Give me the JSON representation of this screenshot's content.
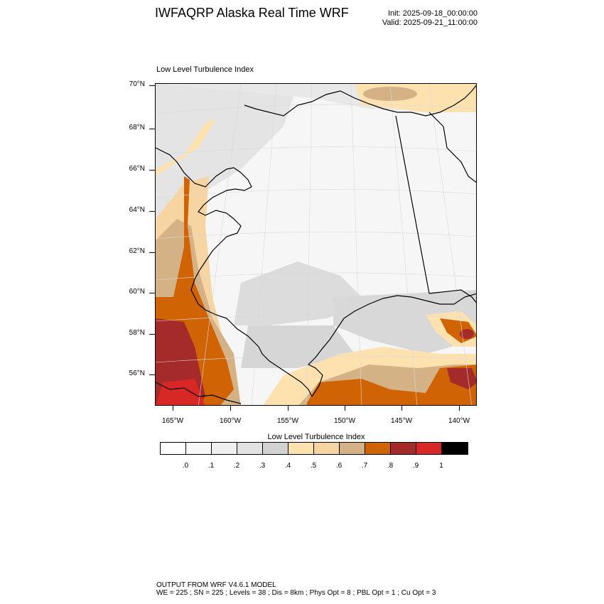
{
  "header": {
    "title": "IWFAQRP Alaska Real Time WRF",
    "init": "Init: 2025-09-18_00:00:00",
    "valid": "Valid: 2025-09-21_11:00:00"
  },
  "map": {
    "subtitle": "Low Level Turbulence Index",
    "lat_labels": [
      "70°N",
      "68°N",
      "66°N",
      "64°N",
      "62°N",
      "60°N",
      "58°N",
      "56°N"
    ],
    "lon_labels": [
      "165°W",
      "160°W",
      "155°W",
      "150°W",
      "145°W",
      "140°W"
    ],
    "coastline_color": "#000000",
    "grid_color": "#d8d8d8"
  },
  "colorbar": {
    "title": "Low Level Turbulence Index",
    "labels": [
      ".0",
      ".1",
      ".2",
      ".3",
      ".4",
      ".5",
      ".6",
      ".7",
      ".8",
      ".9",
      "1"
    ],
    "colors": [
      "#ffffff",
      "#f8f8f8",
      "#efefef",
      "#e2e2e2",
      "#d2d2d2",
      "#fde2b0",
      "#f6d5a3",
      "#d5b186",
      "#d06405",
      "#a52a2a",
      "#d72826",
      "#000000"
    ]
  },
  "footer": {
    "line1": "OUTPUT FROM WRF V4.6.1 MODEL",
    "line2": "WE = 225 ; SN = 225 ; Levels = 38 ; Dis = 8km ; Phys Opt = 8 ; PBL Opt = 1 ; Cu Opt = 3"
  }
}
